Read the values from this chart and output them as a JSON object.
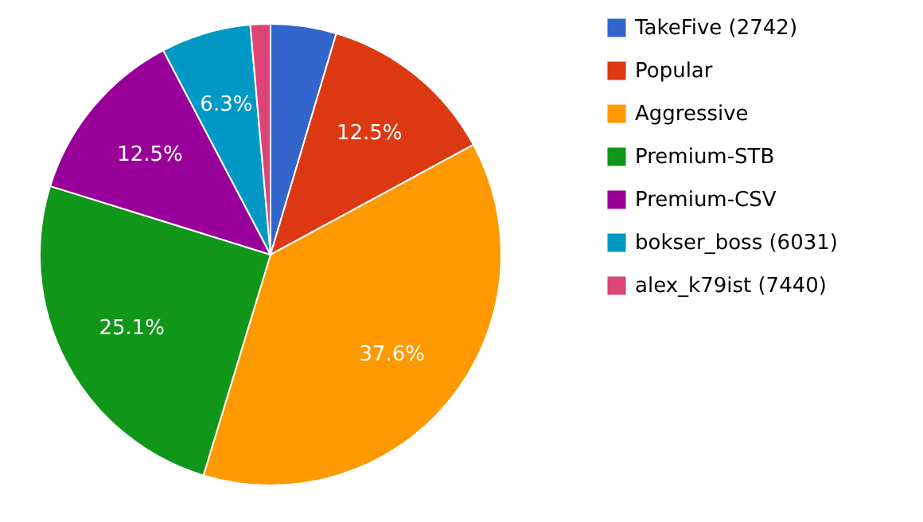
{
  "chart_data": {
    "type": "pie",
    "categories": [
      "TakeFive (2742)",
      "Popular",
      "Aggressive",
      "Premium-STB",
      "Premium-CSV",
      "bokser_boss (6031)",
      "alex_k79ist (7440)"
    ],
    "values": [
      4.6,
      12.5,
      37.6,
      25.1,
      12.5,
      6.3,
      1.4
    ],
    "colors": [
      "#3366cc",
      "#dc3912",
      "#ff9900",
      "#109618",
      "#990099",
      "#0099c6",
      "#dd4477"
    ],
    "value_labels": [
      null,
      "12.5%",
      "37.6%",
      "25.1%",
      "12.5%",
      "6.3%",
      null
    ],
    "legend": "top right"
  }
}
